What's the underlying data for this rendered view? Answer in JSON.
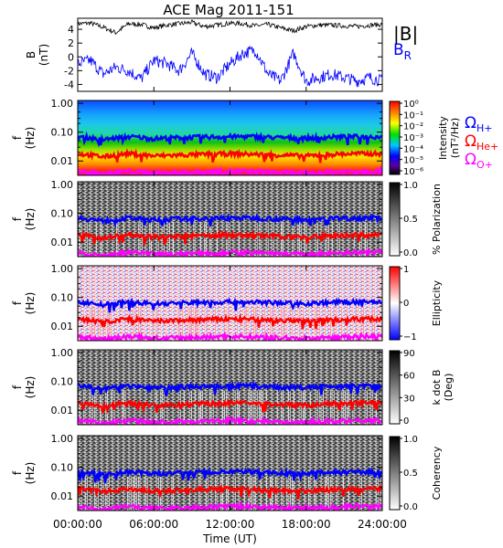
{
  "title": "ACE Mag 2011-151",
  "time_axis": {
    "label": "Time (UT)",
    "ticks": [
      "00:00:00",
      "06:00:00",
      "12:00:00",
      "18:00:00",
      "24:00:00"
    ],
    "range_hours": [
      0,
      24
    ]
  },
  "legend_top": {
    "B_total": "|B|",
    "B_R": "B",
    "B_R_sub": "R"
  },
  "legend_freq": {
    "H": {
      "sym": "Ω",
      "sub": "H+"
    },
    "He": {
      "sym": "Ω",
      "sub": "He+"
    },
    "O": {
      "sym": "Ω",
      "sub": "O+"
    }
  },
  "colors": {
    "B_total": "#000000",
    "B_R": "#0000ff",
    "omega_H": "#0000ff",
    "omega_He": "#ff0000",
    "omega_O": "#ff00ff"
  },
  "chart_data": [
    {
      "type": "line",
      "panel": "field",
      "ylabel": "B",
      "yunit": "(nT)",
      "yticks": [
        "4",
        "2",
        "0",
        "-2",
        "-4"
      ],
      "ylim": [
        -5,
        5.6
      ],
      "x_hours": [
        0,
        1,
        2,
        3,
        4,
        5,
        6,
        7,
        8,
        9,
        10,
        11,
        12,
        13,
        14,
        15,
        16,
        17,
        18,
        19,
        20,
        21,
        22,
        23,
        24
      ],
      "series": [
        {
          "name": "|B|",
          "values": [
            4.8,
            4.9,
            4.3,
            3.5,
            4.8,
            4.7,
            4.2,
            4.6,
            4.8,
            5.0,
            4.4,
            4.6,
            4.9,
            4.8,
            4.5,
            4.7,
            4.2,
            3.8,
            4.4,
            4.6,
            4.6,
            4.5,
            4.4,
            4.6,
            4.7
          ]
        },
        {
          "name": "B_R",
          "values": [
            -1.0,
            -0.5,
            -2.5,
            -1.5,
            -2.0,
            -3.2,
            -0.5,
            -1.0,
            -2.0,
            0.5,
            -2.5,
            -3.0,
            -1.0,
            0.5,
            1.0,
            -2.5,
            -3.5,
            0.5,
            -3.5,
            -3.0,
            -2.5,
            -3.0,
            -3.5,
            -3.0,
            -3.5
          ]
        }
      ]
    },
    {
      "type": "heatmap",
      "panel": "intensity",
      "ylabel": "f",
      "yunit": "(Hz)",
      "yticks": [
        "1.00",
        "0.10",
        "0.01"
      ],
      "ylim_log10": [
        -2.5,
        0.1
      ],
      "colorbar": {
        "label": "Intensity",
        "unit": "(nT²/Hz)",
        "ticks": [
          "10⁰",
          "10⁻¹",
          "10⁻²",
          "10⁻³",
          "10⁻⁴",
          "10⁻⁵",
          "10⁻⁶"
        ]
      }
    },
    {
      "type": "heatmap",
      "panel": "polarization",
      "ylabel": "f",
      "yunit": "(Hz)",
      "yticks": [
        "1.00",
        "0.10",
        "0.01"
      ],
      "colorbar": {
        "label": "% Polarization",
        "ticks": [
          "1.0",
          "0.5",
          "0.0"
        ]
      }
    },
    {
      "type": "heatmap",
      "panel": "ellipticity",
      "ylabel": "f",
      "yunit": "(Hz)",
      "yticks": [
        "1.00",
        "0.10",
        "0.01"
      ],
      "colorbar": {
        "label": "Ellipticity",
        "ticks": [
          "1",
          "0",
          "−1"
        ]
      }
    },
    {
      "type": "heatmap",
      "panel": "kdotb",
      "ylabel": "f",
      "yunit": "(Hz)",
      "yticks": [
        "1.00",
        "0.10",
        "0.01"
      ],
      "colorbar": {
        "label": "k dot B",
        "unit": "(Deg)",
        "ticks": [
          "90",
          "60",
          "30",
          "0"
        ]
      }
    },
    {
      "type": "heatmap",
      "panel": "coherency",
      "ylabel": "f",
      "yunit": "(Hz)",
      "yticks": [
        "1.00",
        "0.10",
        "0.01"
      ],
      "colorbar": {
        "label": "Coherency",
        "ticks": [
          "1.0",
          "0.5",
          "0.0"
        ]
      }
    },
    {
      "type": "line",
      "panel": "gyrofrequencies",
      "x_hours": [
        0,
        2,
        4,
        6,
        8,
        10,
        12,
        14,
        16,
        18,
        20,
        22,
        24
      ],
      "series": [
        {
          "name": "ΩH+",
          "values": [
            0.072,
            0.055,
            0.07,
            0.06,
            0.065,
            0.068,
            0.07,
            0.07,
            0.064,
            0.062,
            0.068,
            0.07,
            0.07
          ]
        },
        {
          "name": "ΩHe+",
          "values": [
            0.018,
            0.014,
            0.018,
            0.015,
            0.016,
            0.017,
            0.018,
            0.017,
            0.016,
            0.015,
            0.017,
            0.018,
            0.018
          ]
        },
        {
          "name": "ΩO+",
          "values": [
            0.0045,
            0.0035,
            0.0045,
            0.0038,
            0.004,
            0.0042,
            0.0045,
            0.0043,
            0.004,
            0.0038,
            0.0042,
            0.0045,
            0.0045
          ]
        }
      ]
    }
  ]
}
